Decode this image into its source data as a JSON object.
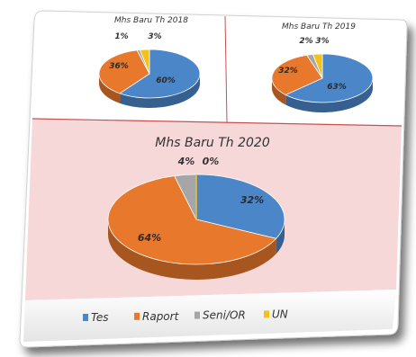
{
  "colors": {
    "Tes": "#4a86c8",
    "Raport": "#e8782c",
    "Seni/OR": "#a6a6a6",
    "UN": "#f2c21b",
    "panel_bg": "#f7d8d8",
    "divider": "#c85050"
  },
  "chart_data": [
    {
      "type": "pie",
      "title": "Mhs Baru Th 2018",
      "categories": [
        "Tes",
        "Raport",
        "Seni/OR",
        "UN"
      ],
      "values": [
        60,
        36,
        1,
        3
      ],
      "labels": [
        "60%",
        "36%",
        "1%",
        "3%"
      ]
    },
    {
      "type": "pie",
      "title": "Mhs Baru Th 2019",
      "categories": [
        "Tes",
        "Raport",
        "Seni/OR",
        "UN"
      ],
      "values": [
        63,
        32,
        2,
        3
      ],
      "labels": [
        "63%",
        "32%",
        "2%",
        "3%"
      ]
    },
    {
      "type": "pie",
      "title": "Mhs Baru Th 2020",
      "categories": [
        "Tes",
        "Raport",
        "Seni/OR",
        "UN"
      ],
      "values": [
        32,
        64,
        4,
        0
      ],
      "labels": [
        "32%",
        "64%",
        "4%",
        "0%"
      ]
    }
  ],
  "legend": [
    "Tes",
    "Raport",
    "Seni/OR",
    "UN"
  ]
}
